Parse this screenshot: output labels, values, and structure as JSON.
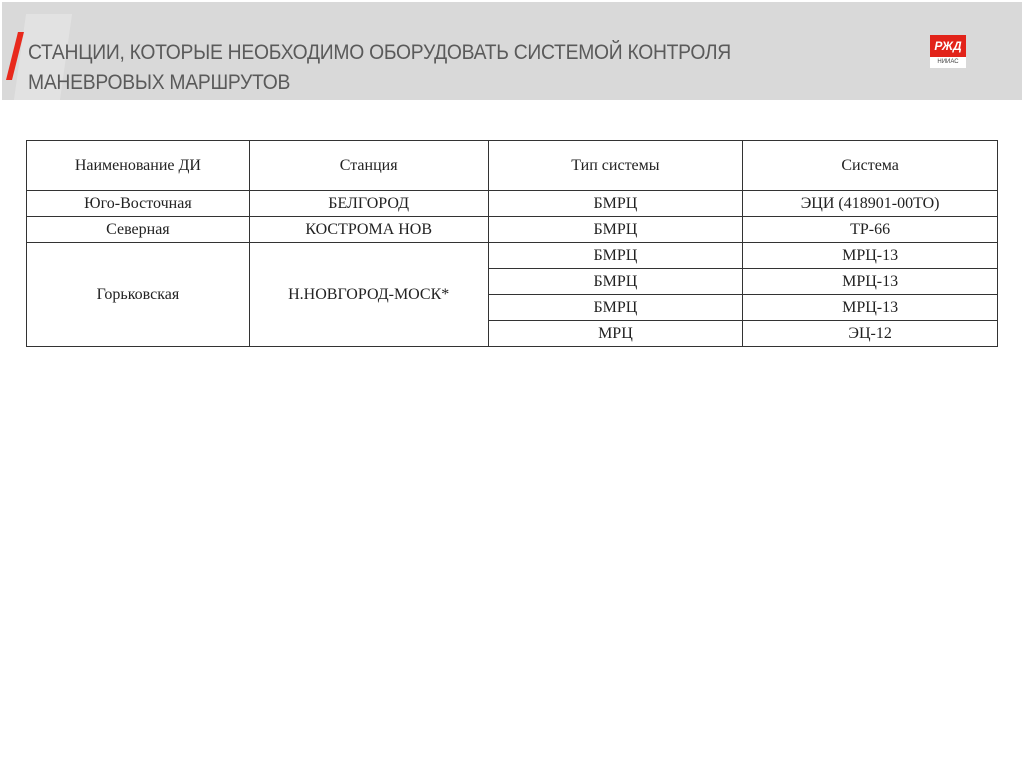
{
  "header": {
    "title_line1": "СТАНЦИИ, КОТОРЫЕ НЕОБХОДИМО ОБОРУДОВАТЬ СИСТЕМОЙ КОНТРОЛЯ",
    "title_line2": "МАНЕВРОВЫХ МАРШРУТОВ",
    "logo_text": "РЖД",
    "logo_sub": "НИИАС",
    "accent": "#e8291c"
  },
  "table": {
    "headers": [
      "Наименование  ДИ",
      "Станция",
      "Тип системы",
      "Система"
    ],
    "rows": [
      {
        "di": "Юго-Восточная",
        "station": "БЕЛГОРОД",
        "type": "БМРЦ",
        "system": "ЭЦИ (418901-00ТО)"
      },
      {
        "di": "Северная",
        "station": "КОСТРОМА НОВ",
        "type": "БМРЦ",
        "system": "ТР-66"
      },
      {
        "di": "Горьковская",
        "station": "Н.НОВГОРОД-МОСК*",
        "type": "БМРЦ",
        "system": "МРЦ-13"
      },
      {
        "type": "БМРЦ",
        "system": "МРЦ-13"
      },
      {
        "type": "БМРЦ",
        "system": "МРЦ-13"
      },
      {
        "type": "МРЦ",
        "system": "ЭЦ-12"
      }
    ]
  }
}
